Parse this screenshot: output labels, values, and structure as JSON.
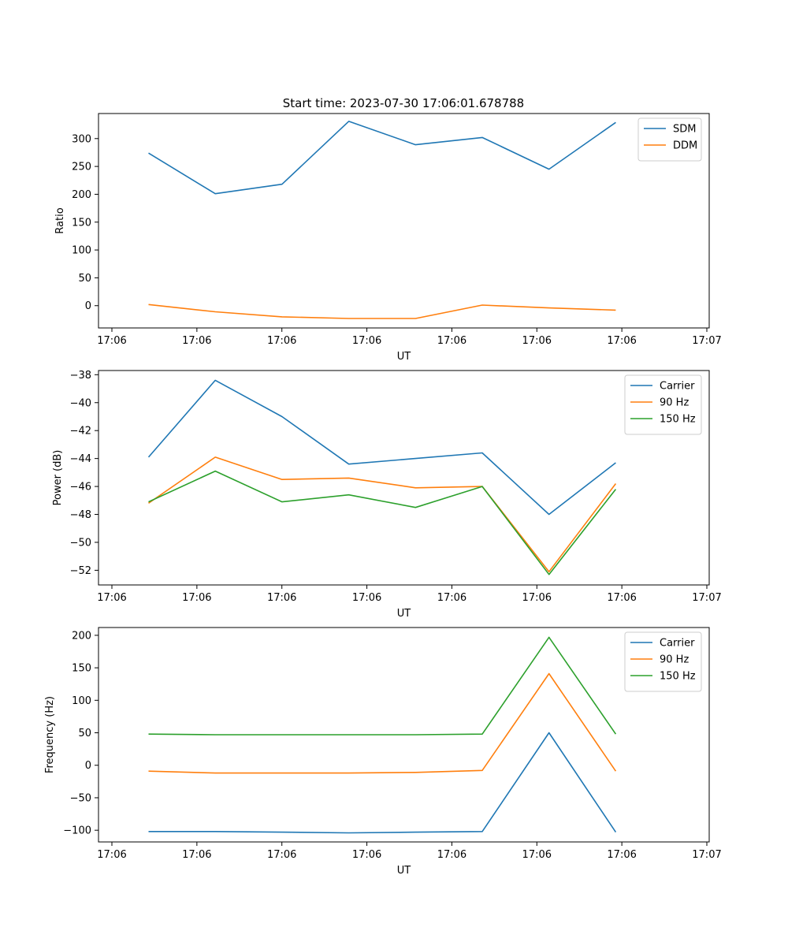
{
  "figure": {
    "title": "Start time: 2023-07-30 17:06:01.678788",
    "background": "#ffffff"
  },
  "chart_data": [
    {
      "type": "line",
      "title": "Start time: 2023-07-30 17:06:01.678788",
      "xlabel": "UT",
      "ylabel": "Ratio",
      "x_tick_labels": [
        "17:06",
        "17:06",
        "17:06",
        "17:06",
        "17:06",
        "17:06",
        "17:06",
        "17:07"
      ],
      "x": [
        1,
        2,
        3,
        4,
        5,
        6,
        7,
        8
      ],
      "xlim": [
        0.25,
        9.4
      ],
      "ylim": [
        -40,
        345
      ],
      "y_ticks": [
        0,
        50,
        100,
        150,
        200,
        250,
        300
      ],
      "y_tick_labels": [
        "0",
        "50",
        "100",
        "150",
        "200",
        "250",
        "300"
      ],
      "legend_position": "top-right",
      "series": [
        {
          "name": "SDM",
          "color": "#1f77b4",
          "values": [
            274,
            201,
            218,
            331,
            289,
            302,
            245,
            329
          ]
        },
        {
          "name": "DDM",
          "color": "#ff7f0e",
          "values": [
            2,
            -11,
            -20,
            -23,
            -23,
            1,
            -4,
            -8
          ]
        }
      ]
    },
    {
      "type": "line",
      "title": "",
      "xlabel": "UT",
      "ylabel": "Power (dB)",
      "x_tick_labels": [
        "17:06",
        "17:06",
        "17:06",
        "17:06",
        "17:06",
        "17:06",
        "17:06",
        "17:07"
      ],
      "x": [
        1,
        2,
        3,
        4,
        5,
        6,
        7,
        8
      ],
      "xlim": [
        0.25,
        9.4
      ],
      "ylim": [
        -53.05,
        -37.7
      ],
      "y_ticks": [
        -52,
        -50,
        -48,
        -46,
        -44,
        -42,
        -40,
        -38
      ],
      "y_tick_labels": [
        "−52",
        "−50",
        "−48",
        "−46",
        "−44",
        "−42",
        "−40",
        "−38"
      ],
      "legend_position": "top-right",
      "series": [
        {
          "name": "Carrier",
          "color": "#1f77b4",
          "values": [
            -43.9,
            -38.4,
            -41.0,
            -44.4,
            -44.0,
            -43.6,
            -48.0,
            -44.3
          ]
        },
        {
          "name": "90 Hz",
          "color": "#ff7f0e",
          "values": [
            -47.2,
            -43.9,
            -45.5,
            -45.4,
            -46.1,
            -46.0,
            -52.1,
            -45.8
          ]
        },
        {
          "name": "150 Hz",
          "color": "#2ca02c",
          "values": [
            -47.1,
            -44.9,
            -47.1,
            -46.6,
            -47.5,
            -46.0,
            -52.3,
            -46.2
          ]
        }
      ]
    },
    {
      "type": "line",
      "title": "",
      "xlabel": "UT",
      "ylabel": "Frequency (Hz)",
      "x_tick_labels": [
        "17:06",
        "17:06",
        "17:06",
        "17:06",
        "17:06",
        "17:06",
        "17:06",
        "17:07"
      ],
      "x": [
        1,
        2,
        3,
        4,
        5,
        6,
        7,
        8
      ],
      "xlim": [
        0.25,
        9.4
      ],
      "ylim": [
        -118,
        212
      ],
      "y_ticks": [
        -100,
        -50,
        0,
        50,
        100,
        150,
        200
      ],
      "y_tick_labels": [
        "−100",
        "−50",
        "0",
        "50",
        "100",
        "150",
        "200"
      ],
      "legend_position": "top-right",
      "series": [
        {
          "name": "Carrier",
          "color": "#1f77b4",
          "values": [
            -102,
            -102,
            -103,
            -104,
            -103,
            -102,
            50,
            -103
          ]
        },
        {
          "name": "90 Hz",
          "color": "#ff7f0e",
          "values": [
            -9,
            -12,
            -12,
            -12,
            -11,
            -8,
            141,
            -9
          ]
        },
        {
          "name": "150 Hz",
          "color": "#2ca02c",
          "values": [
            48,
            47,
            47,
            47,
            47,
            48,
            197,
            48
          ]
        }
      ]
    }
  ]
}
